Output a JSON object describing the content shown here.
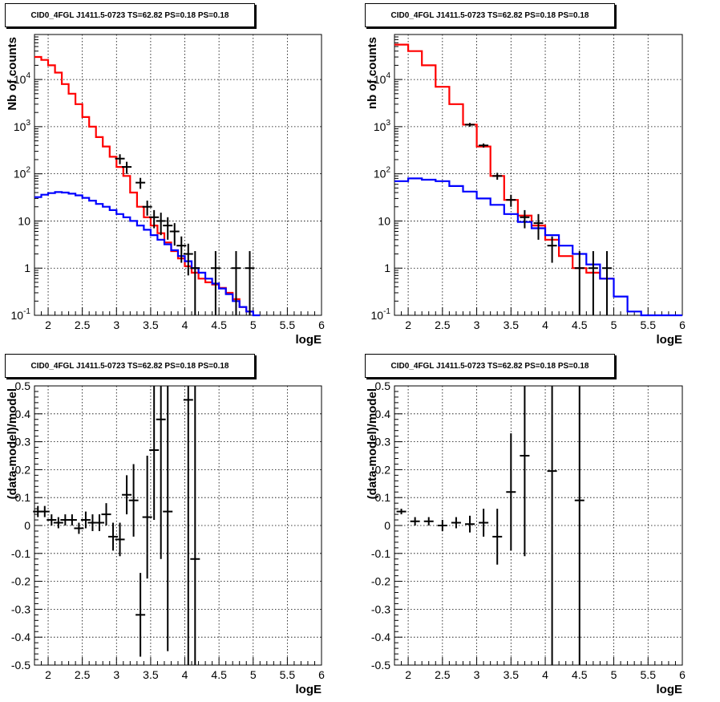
{
  "chart_data": [
    {
      "type": "line",
      "title": "CID0_4FGL J1411.5-0723 TS=62.82 PS=0.18 PS=0.18",
      "xlabel": "logE",
      "ylabel": "Nb of counts",
      "yscale": "log",
      "xlim": [
        1.8,
        6
      ],
      "ylim": [
        0.1,
        90000
      ],
      "grid": true,
      "xticks": [
        "2",
        "2.5",
        "3",
        "3.5",
        "4",
        "4.5",
        "5",
        "5.5",
        "6"
      ],
      "yticks": [
        "10^{-1}",
        "1",
        "10",
        "10^{2}",
        "10^{3}",
        "10^{4}"
      ],
      "series": [
        {
          "role": "total-model",
          "color": "#ff0000",
          "edges": [
            1.8,
            1.9,
            2.0,
            2.1,
            2.2,
            2.3,
            2.4,
            2.5,
            2.6,
            2.7,
            2.8,
            2.9,
            3.0,
            3.1,
            3.2,
            3.3,
            3.4,
            3.5,
            3.6,
            3.7,
            3.8,
            3.9,
            4.0,
            4.1,
            4.2,
            4.3,
            4.4,
            4.5,
            4.6,
            4.7,
            4.8,
            4.9,
            5.0
          ],
          "values": [
            30000,
            26000,
            20000,
            14000,
            8000,
            5000,
            3000,
            1600,
            1000,
            600,
            380,
            230,
            140,
            90,
            40,
            20,
            12,
            8,
            5.5,
            3.5,
            2.3,
            1.6,
            1.1,
            0.8,
            0.6,
            0.5,
            0.45,
            0.38,
            0.3,
            0.22,
            0.15,
            0.12
          ]
        },
        {
          "role": "source-model",
          "color": "#0000ff",
          "edges": [
            1.8,
            1.9,
            2.0,
            2.1,
            2.2,
            2.3,
            2.4,
            2.5,
            2.6,
            2.7,
            2.8,
            2.9,
            3.0,
            3.1,
            3.2,
            3.3,
            3.4,
            3.5,
            3.6,
            3.7,
            3.8,
            3.9,
            4.0,
            4.1,
            4.2,
            4.3,
            4.4,
            4.5,
            4.6,
            4.7,
            4.8,
            4.9,
            5.0,
            5.1
          ],
          "values": [
            32,
            36,
            39,
            41,
            40,
            38,
            35,
            31,
            27,
            23,
            20,
            17,
            14,
            12,
            10,
            8,
            6.5,
            5,
            4,
            3.2,
            2.4,
            1.8,
            1.4,
            1.0,
            0.8,
            0.6,
            0.47,
            0.37,
            0.28,
            0.2,
            0.15,
            0.12,
            0.1
          ]
        }
      ],
      "data_points": {
        "color": "#000000",
        "x": [
          3.05,
          3.15,
          3.35,
          3.45,
          3.55,
          3.65,
          3.75,
          3.85,
          3.95,
          4.05,
          4.15,
          4.45,
          4.75,
          4.95
        ],
        "y": [
          210,
          140,
          65,
          20,
          12,
          10,
          8,
          6,
          3,
          2,
          1,
          1,
          1,
          1
        ],
        "ylow": [
          160,
          100,
          48,
          13,
          7,
          5,
          4,
          3,
          1.3,
          0.7,
          0.09,
          0.09,
          0.09,
          0.09
        ],
        "yhigh": [
          260,
          180,
          82,
          27,
          17,
          15,
          12,
          9,
          4.7,
          3.3,
          2.3,
          2.3,
          2.3,
          2.3
        ]
      }
    },
    {
      "type": "line",
      "title": "CID0_4FGL J1411.5-0723 TS=62.82 PS=0.18 PS=0.18",
      "xlabel": "logE",
      "ylabel": "nb of counts",
      "yscale": "log",
      "xlim": [
        1.8,
        6
      ],
      "ylim": [
        0.1,
        90000
      ],
      "grid": true,
      "xticks": [
        "2",
        "2.5",
        "3",
        "3.5",
        "4",
        "4.5",
        "5",
        "5.5",
        "6"
      ],
      "yticks": [
        "10^{-1}",
        "1",
        "10",
        "10^{2}",
        "10^{3}",
        "10^{4}"
      ],
      "series": [
        {
          "role": "total-model",
          "color": "#ff0000",
          "edges": [
            1.8,
            2.0,
            2.2,
            2.4,
            2.6,
            2.8,
            3.0,
            3.2,
            3.4,
            3.6,
            3.8,
            4.0,
            4.2,
            4.4,
            4.6,
            4.8,
            5.0
          ],
          "values": [
            55000,
            40000,
            20000,
            7000,
            3000,
            1100,
            380,
            90,
            28,
            13,
            8,
            4,
            1.8,
            1.0,
            0.8,
            0.6
          ]
        },
        {
          "role": "source-model",
          "color": "#0000ff",
          "edges": [
            1.8,
            2.0,
            2.2,
            2.4,
            2.6,
            2.8,
            3.0,
            3.2,
            3.4,
            3.6,
            3.8,
            4.0,
            4.2,
            4.4,
            4.6,
            4.8,
            5.0,
            5.2,
            5.4,
            6.0
          ],
          "values": [
            70,
            80,
            75,
            70,
            55,
            42,
            30,
            22,
            14,
            9.5,
            7,
            5,
            3,
            2,
            1.2,
            0.6,
            0.25,
            0.12,
            0.1
          ]
        }
      ],
      "data_points": {
        "color": "#000000",
        "x": [
          2.9,
          3.1,
          3.3,
          3.5,
          3.7,
          3.9,
          4.1,
          4.5,
          4.7,
          4.9
        ],
        "y": [
          1100,
          400,
          90,
          28,
          12,
          9,
          3,
          1,
          1,
          1
        ],
        "ylow": [
          1000,
          360,
          75,
          20,
          7,
          4,
          1.3,
          0.09,
          0.09,
          0.09
        ],
        "yhigh": [
          1200,
          440,
          105,
          36,
          17,
          14,
          4.7,
          2.3,
          2.3,
          2.3
        ]
      }
    },
    {
      "type": "scatter",
      "title": "CID0_4FGL J1411.5-0723 TS=62.82 PS=0.18 PS=0.18",
      "xlabel": "logE",
      "ylabel": "(data-model)/model",
      "xlim": [
        1.8,
        6
      ],
      "ylim": [
        -0.5,
        0.5
      ],
      "grid": true,
      "xticks": [
        "2",
        "2.5",
        "3",
        "3.5",
        "4",
        "4.5",
        "5",
        "5.5",
        "6"
      ],
      "yticks": [
        "-0.5",
        "-0.4",
        "-0.3",
        "-0.2",
        "-0.1",
        "0",
        "0.1",
        "0.2",
        "0.3",
        "0.4",
        "0.5"
      ],
      "color": "#000000",
      "x": [
        1.85,
        1.95,
        2.05,
        2.15,
        2.25,
        2.35,
        2.45,
        2.55,
        2.65,
        2.75,
        2.85,
        2.95,
        3.05,
        3.15,
        3.25,
        3.35,
        3.45,
        3.55,
        3.65,
        3.75,
        4.05,
        4.15
      ],
      "y": [
        0.05,
        0.05,
        0.02,
        0.01,
        0.02,
        0.02,
        -0.01,
        0.02,
        0.01,
        0.01,
        0.04,
        -0.04,
        -0.05,
        0.11,
        0.09,
        -0.32,
        0.03,
        0.27,
        0.38,
        0.05,
        0.45,
        -0.12
      ],
      "err": [
        0.02,
        0.02,
        0.02,
        0.02,
        0.02,
        0.02,
        0.02,
        0.03,
        0.03,
        0.03,
        0.04,
        0.05,
        0.06,
        0.07,
        0.13,
        0.15,
        0.22,
        0.25,
        0.5,
        0.5,
        1.5,
        1.5
      ]
    },
    {
      "type": "scatter",
      "title": "CID0_4FGL J1411.5-0723 TS=62.82 PS=0.18 PS=0.18",
      "xlabel": "logE",
      "ylabel": "(data-model)/model",
      "xlim": [
        1.8,
        6
      ],
      "ylim": [
        -0.5,
        0.5
      ],
      "grid": true,
      "xticks": [
        "2",
        "2.5",
        "3",
        "3.5",
        "4",
        "4.5",
        "5",
        "5.5",
        "6"
      ],
      "yticks": [
        "-0.5",
        "-0.4",
        "-0.3",
        "-0.2",
        "-0.1",
        "0",
        "0.1",
        "0.2",
        "0.3",
        "0.4",
        "0.5"
      ],
      "color": "#000000",
      "x": [
        1.9,
        2.1,
        2.3,
        2.5,
        2.7,
        2.9,
        3.1,
        3.3,
        3.5,
        3.7,
        4.1,
        4.5
      ],
      "y": [
        0.05,
        0.015,
        0.015,
        0.0,
        0.01,
        0.005,
        0.01,
        -0.04,
        0.12,
        0.25,
        0.195,
        0.09
      ],
      "err": [
        0.01,
        0.015,
        0.015,
        0.02,
        0.02,
        0.03,
        0.05,
        0.1,
        0.21,
        0.36,
        1.5,
        1.5
      ]
    }
  ]
}
